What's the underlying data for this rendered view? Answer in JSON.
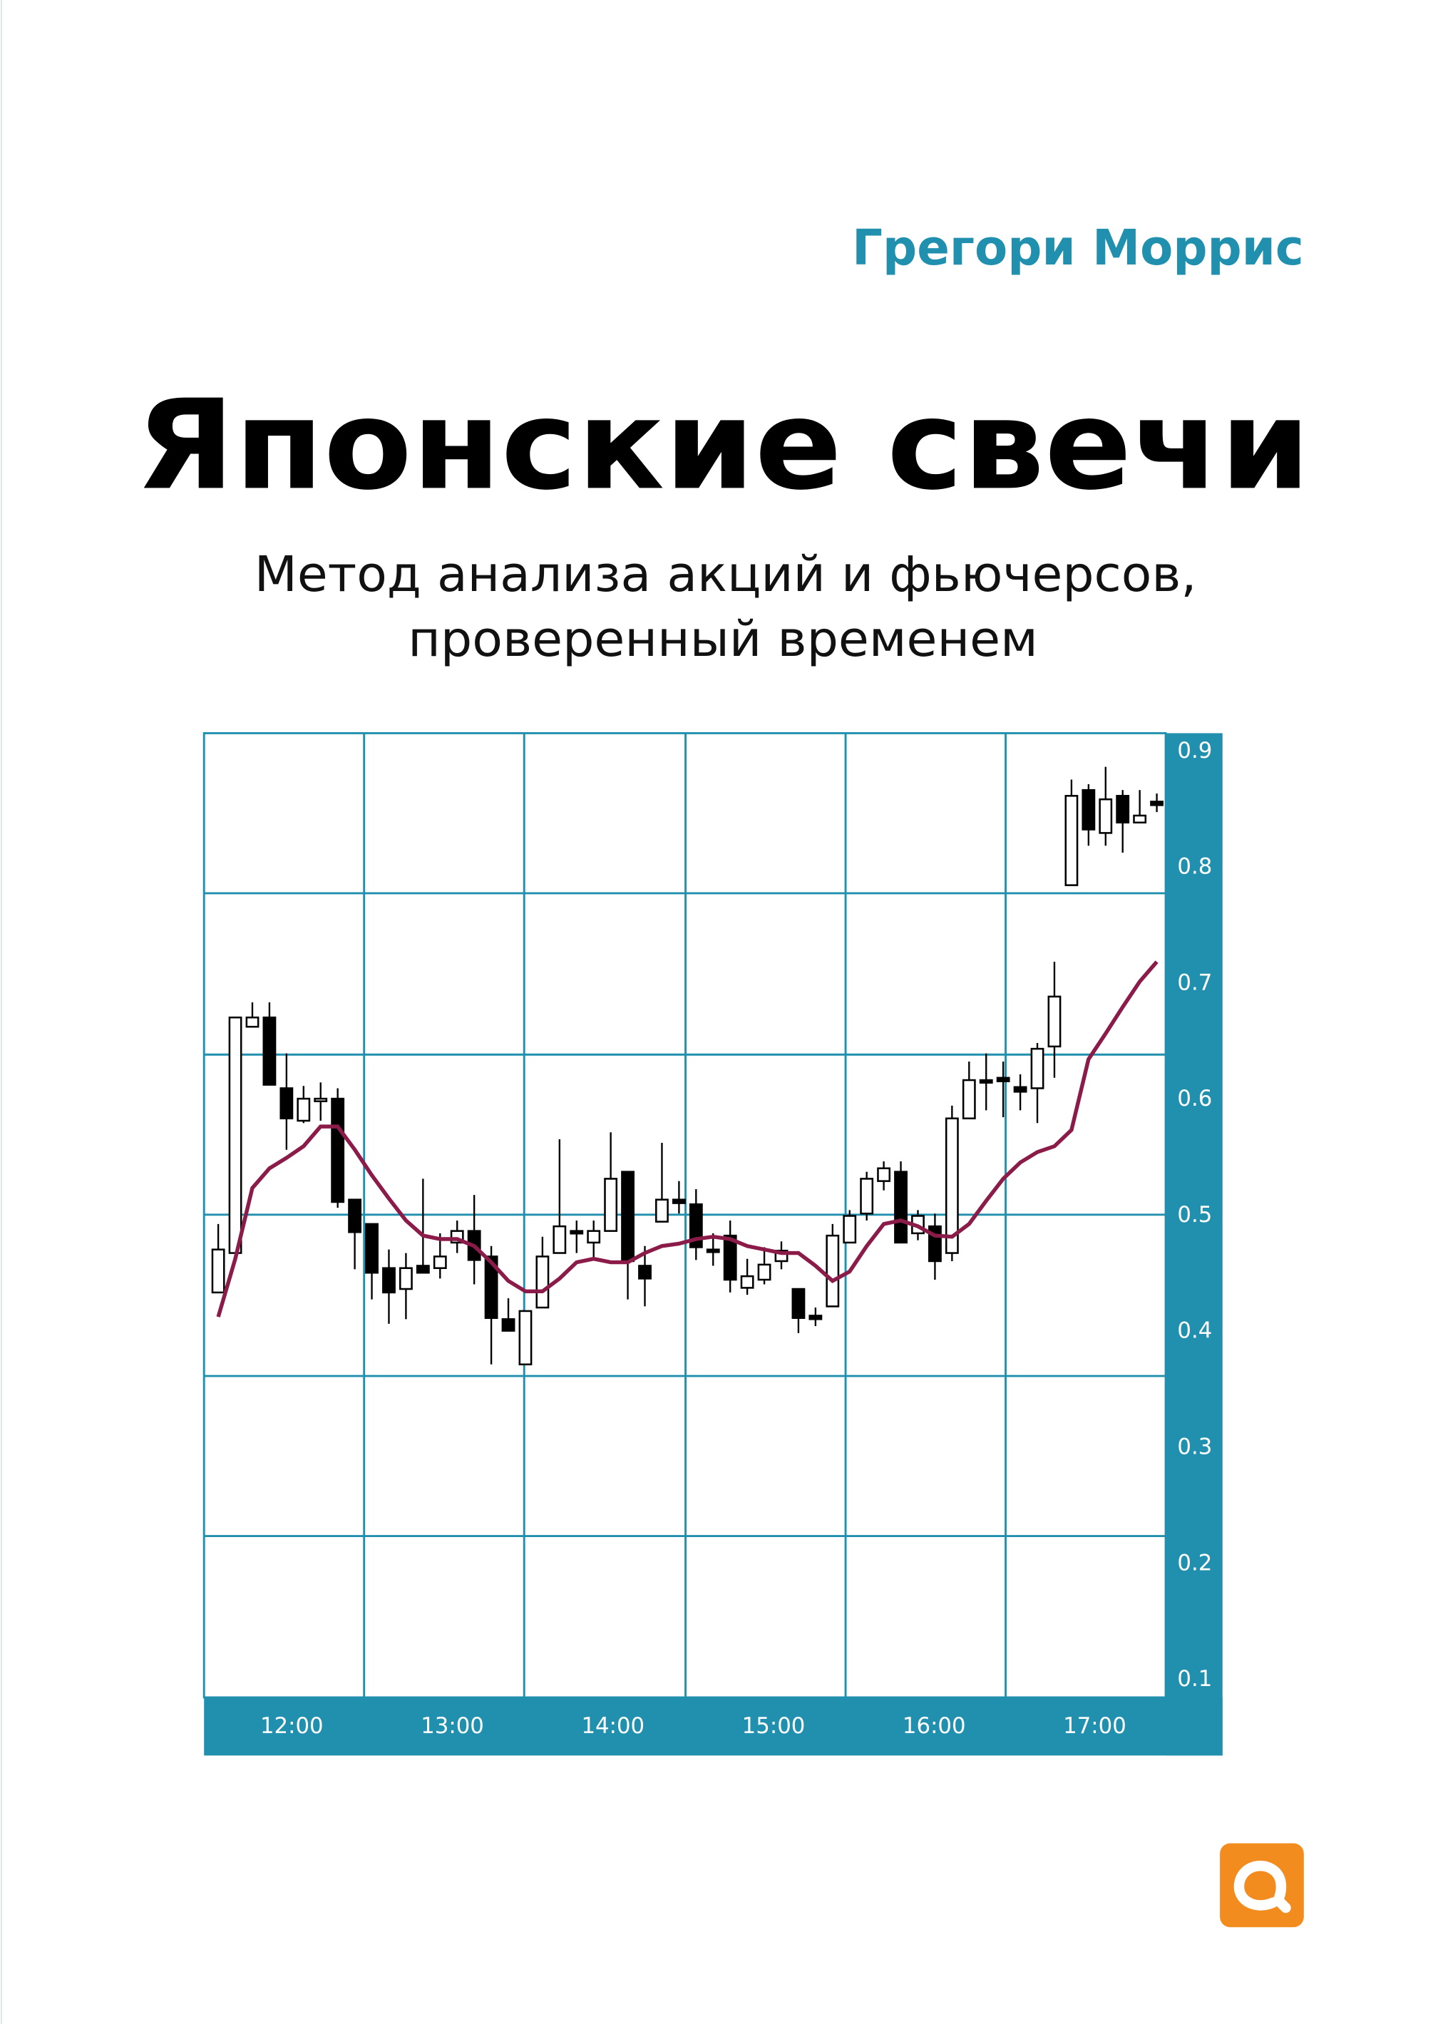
{
  "author": "Грегори Моррис",
  "title": "Японские свечи",
  "subtitle": [
    "Метод анализа акций и фьючерсов,",
    "проверенный временем"
  ],
  "chart_data": {
    "type": "candlestick",
    "x_labels": [
      "12:00",
      "13:00",
      "14:00",
      "15:00",
      "16:00",
      "17:00"
    ],
    "ylim": [
      0.085,
      0.916
    ],
    "yticks": [
      0.1,
      0.2,
      0.3,
      0.4,
      0.5,
      0.6,
      0.7,
      0.8,
      0.9
    ],
    "open": [
      0.434,
      0.468,
      0.663,
      0.671,
      0.61,
      0.582,
      0.599,
      0.601,
      0.514,
      0.493,
      0.455,
      0.437,
      0.457,
      0.455,
      0.477,
      0.487,
      0.465,
      0.411,
      0.372,
      0.421,
      0.468,
      0.487,
      0.477,
      0.487,
      0.538,
      0.457,
      0.495,
      0.514,
      0.51,
      0.471,
      0.483,
      0.438,
      0.445,
      0.461,
      0.437,
      0.414,
      0.422,
      0.477,
      0.502,
      0.53,
      0.538,
      0.485,
      0.491,
      0.468,
      0.584,
      0.617,
      0.619,
      0.611,
      0.61,
      0.646,
      0.785,
      0.867,
      0.83,
      0.862,
      0.839,
      0.857
    ],
    "high": [
      0.493,
      0.671,
      0.684,
      0.684,
      0.64,
      0.612,
      0.615,
      0.61,
      0.514,
      0.493,
      0.471,
      0.468,
      0.532,
      0.485,
      0.496,
      0.518,
      0.474,
      0.429,
      0.418,
      0.482,
      0.566,
      0.496,
      0.496,
      0.572,
      0.538,
      0.474,
      0.563,
      0.53,
      0.523,
      0.485,
      0.496,
      0.463,
      0.473,
      0.478,
      0.437,
      0.421,
      0.493,
      0.505,
      0.538,
      0.547,
      0.547,
      0.505,
      0.502,
      0.595,
      0.633,
      0.64,
      0.633,
      0.622,
      0.649,
      0.719,
      0.876,
      0.872,
      0.887,
      0.867,
      0.867,
      0.864
    ],
    "low": [
      0.434,
      0.468,
      0.663,
      0.613,
      0.557,
      0.58,
      0.582,
      0.507,
      0.454,
      0.428,
      0.407,
      0.411,
      0.451,
      0.446,
      0.468,
      0.441,
      0.372,
      0.401,
      0.372,
      0.421,
      0.468,
      0.468,
      0.462,
      0.487,
      0.428,
      0.422,
      0.495,
      0.502,
      0.462,
      0.457,
      0.434,
      0.432,
      0.441,
      0.454,
      0.399,
      0.405,
      0.422,
      0.477,
      0.496,
      0.522,
      0.477,
      0.479,
      0.445,
      0.461,
      0.584,
      0.591,
      0.585,
      0.591,
      0.58,
      0.619,
      0.785,
      0.819,
      0.819,
      0.813,
      0.839,
      0.848
    ],
    "close": [
      0.471,
      0.671,
      0.671,
      0.613,
      0.584,
      0.601,
      0.601,
      0.512,
      0.486,
      0.451,
      0.434,
      0.455,
      0.451,
      0.465,
      0.487,
      0.462,
      0.412,
      0.401,
      0.418,
      0.465,
      0.491,
      0.485,
      0.487,
      0.532,
      0.461,
      0.446,
      0.514,
      0.511,
      0.473,
      0.47,
      0.445,
      0.448,
      0.458,
      0.47,
      0.412,
      0.411,
      0.483,
      0.5,
      0.532,
      0.541,
      0.477,
      0.5,
      0.461,
      0.584,
      0.617,
      0.615,
      0.616,
      0.607,
      0.644,
      0.689,
      0.862,
      0.833,
      0.859,
      0.839,
      0.845,
      0.854
    ],
    "ma_values": [
      0.413,
      0.463,
      0.524,
      0.541,
      0.55,
      0.56,
      0.577,
      0.577,
      0.557,
      0.535,
      0.515,
      0.496,
      0.483,
      0.48,
      0.48,
      0.474,
      0.46,
      0.444,
      0.435,
      0.435,
      0.446,
      0.46,
      0.463,
      0.46,
      0.46,
      0.468,
      0.474,
      0.476,
      0.48,
      0.482,
      0.48,
      0.474,
      0.471,
      0.468,
      0.468,
      0.457,
      0.444,
      0.452,
      0.474,
      0.493,
      0.496,
      0.491,
      0.483,
      0.482,
      0.493,
      0.513,
      0.532,
      0.546,
      0.555,
      0.56,
      0.574,
      0.635,
      0.657,
      0.68,
      0.702,
      0.719
    ],
    "ma_color": "#8b1c4a",
    "accent_color": "#2190ae"
  }
}
